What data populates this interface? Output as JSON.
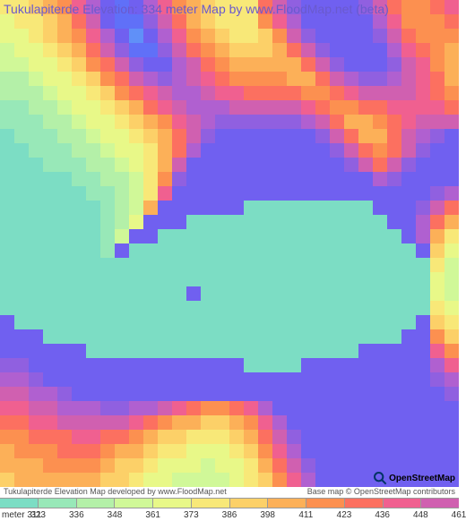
{
  "title": "Tukulapiterde Elevation: 334 meter Map by www.FloodMap.net (beta)",
  "footer_left": "Tukulapiterde Elevation Map developed by www.FloodMap.net",
  "footer_right": "Base map © OpenStreetMap contributors",
  "logo_text": "OpenStreetMap",
  "elevation_palette": [
    "#7CDDC4",
    "#7CDDC4",
    "#98E8B8",
    "#B4F0A8",
    "#D0F898",
    "#E8F888",
    "#F8E878",
    "#FCD068",
    "#FCB058",
    "#FC9050",
    "#FC7060",
    "#F06090",
    "#D060B0",
    "#B060D0",
    "#9060E0",
    "#7060F0",
    "#6070F8",
    "#6090F8",
    "#60B0F8"
  ],
  "legend": {
    "unit": "meter",
    "colors": [
      "#7CDDC4",
      "#98E8B8",
      "#B4F0A8",
      "#D0F898",
      "#E8F888",
      "#F8E878",
      "#FCD068",
      "#FCB058",
      "#FC9050",
      "#FC7060",
      "#F06090",
      "#D060B0"
    ],
    "labels": [
      "311",
      "323",
      "336",
      "348",
      "361",
      "373",
      "386",
      "398",
      "411",
      "423",
      "436",
      "448",
      "461"
    ]
  },
  "grid_cols": 32,
  "grid_rows": 34,
  "elevation_grid": [
    [
      6,
      6,
      7,
      8,
      9,
      11,
      13,
      15,
      16,
      15,
      13,
      11,
      9,
      8,
      7,
      6,
      6,
      6,
      10,
      12,
      14,
      15,
      15,
      15,
      15,
      14,
      12,
      10,
      9,
      9,
      10,
      11
    ],
    [
      5,
      6,
      6,
      7,
      8,
      10,
      12,
      15,
      16,
      16,
      14,
      12,
      10,
      8,
      7,
      6,
      6,
      6,
      9,
      11,
      13,
      15,
      15,
      15,
      15,
      15,
      13,
      11,
      9,
      9,
      9,
      10
    ],
    [
      5,
      5,
      6,
      7,
      8,
      9,
      11,
      13,
      15,
      17,
      15,
      13,
      11,
      9,
      8,
      7,
      6,
      6,
      7,
      9,
      12,
      14,
      15,
      15,
      15,
      15,
      14,
      12,
      10,
      9,
      9,
      9
    ],
    [
      4,
      5,
      5,
      6,
      7,
      8,
      10,
      12,
      14,
      16,
      16,
      14,
      12,
      10,
      9,
      8,
      7,
      7,
      7,
      8,
      10,
      12,
      14,
      15,
      15,
      15,
      15,
      13,
      11,
      10,
      9,
      8
    ],
    [
      4,
      4,
      5,
      5,
      6,
      7,
      9,
      10,
      12,
      14,
      15,
      15,
      13,
      12,
      10,
      9,
      8,
      8,
      8,
      8,
      8,
      10,
      12,
      14,
      15,
      15,
      15,
      14,
      12,
      11,
      9,
      8
    ],
    [
      3,
      3,
      4,
      5,
      5,
      6,
      7,
      9,
      10,
      12,
      13,
      14,
      13,
      12,
      11,
      10,
      9,
      9,
      9,
      9,
      8,
      8,
      10,
      12,
      13,
      14,
      14,
      13,
      12,
      11,
      10,
      8
    ],
    [
      3,
      3,
      3,
      4,
      5,
      5,
      6,
      7,
      9,
      10,
      11,
      12,
      13,
      13,
      12,
      11,
      11,
      10,
      10,
      10,
      10,
      9,
      9,
      10,
      11,
      12,
      12,
      12,
      12,
      11,
      10,
      9
    ],
    [
      2,
      2,
      3,
      3,
      4,
      5,
      5,
      6,
      7,
      8,
      10,
      11,
      12,
      13,
      13,
      13,
      12,
      12,
      12,
      12,
      12,
      11,
      10,
      9,
      9,
      10,
      10,
      11,
      11,
      11,
      11,
      10
    ],
    [
      2,
      2,
      2,
      3,
      3,
      4,
      5,
      5,
      6,
      7,
      8,
      9,
      11,
      12,
      13,
      14,
      14,
      14,
      14,
      14,
      14,
      13,
      12,
      10,
      8,
      8,
      9,
      10,
      11,
      12,
      12,
      12
    ],
    [
      1,
      2,
      2,
      2,
      3,
      3,
      4,
      5,
      5,
      6,
      7,
      8,
      10,
      12,
      14,
      15,
      15,
      15,
      15,
      15,
      15,
      15,
      14,
      12,
      10,
      8,
      8,
      10,
      12,
      13,
      14,
      15
    ],
    [
      1,
      1,
      2,
      2,
      2,
      3,
      3,
      4,
      5,
      5,
      6,
      8,
      10,
      13,
      15,
      15,
      15,
      15,
      15,
      15,
      15,
      15,
      15,
      14,
      12,
      10,
      9,
      10,
      12,
      14,
      15,
      15
    ],
    [
      1,
      1,
      1,
      2,
      2,
      2,
      3,
      3,
      4,
      5,
      6,
      8,
      12,
      15,
      15,
      15,
      15,
      15,
      15,
      15,
      15,
      15,
      15,
      15,
      14,
      12,
      10,
      12,
      14,
      15,
      15,
      15
    ],
    [
      0,
      0,
      1,
      1,
      1,
      2,
      2,
      3,
      3,
      4,
      6,
      9,
      14,
      15,
      15,
      15,
      15,
      15,
      15,
      15,
      15,
      15,
      15,
      15,
      15,
      15,
      13,
      14,
      15,
      15,
      15,
      15
    ],
    [
      0,
      0,
      0,
      1,
      1,
      1,
      2,
      2,
      3,
      4,
      6,
      11,
      15,
      15,
      15,
      15,
      15,
      15,
      15,
      15,
      15,
      15,
      15,
      15,
      15,
      15,
      15,
      15,
      15,
      15,
      14,
      13
    ],
    [
      0,
      0,
      0,
      0,
      0,
      1,
      1,
      2,
      3,
      4,
      8,
      15,
      15,
      15,
      15,
      15,
      15,
      0,
      0,
      0,
      0,
      0,
      0,
      0,
      0,
      0,
      15,
      15,
      15,
      14,
      12,
      10
    ],
    [
      0,
      0,
      0,
      0,
      0,
      0,
      1,
      2,
      3,
      5,
      15,
      15,
      15,
      0,
      0,
      0,
      0,
      0,
      0,
      0,
      0,
      0,
      0,
      0,
      0,
      0,
      0,
      15,
      15,
      13,
      10,
      8
    ],
    [
      0,
      0,
      0,
      0,
      0,
      0,
      1,
      2,
      4,
      15,
      15,
      0,
      0,
      0,
      0,
      0,
      0,
      0,
      0,
      0,
      0,
      0,
      0,
      0,
      0,
      0,
      0,
      0,
      15,
      13,
      8,
      6
    ],
    [
      0,
      0,
      0,
      0,
      0,
      0,
      1,
      2,
      15,
      0,
      0,
      0,
      0,
      0,
      0,
      0,
      0,
      0,
      0,
      0,
      0,
      0,
      0,
      0,
      0,
      0,
      0,
      0,
      0,
      15,
      7,
      5
    ],
    [
      0,
      0,
      0,
      0,
      0,
      0,
      0,
      0,
      0,
      0,
      0,
      0,
      0,
      0,
      0,
      0,
      0,
      0,
      0,
      0,
      0,
      0,
      0,
      0,
      0,
      0,
      0,
      0,
      0,
      0,
      6,
      4
    ],
    [
      0,
      0,
      0,
      0,
      0,
      0,
      0,
      0,
      0,
      0,
      0,
      0,
      0,
      0,
      0,
      0,
      0,
      0,
      0,
      0,
      0,
      0,
      0,
      0,
      0,
      0,
      0,
      0,
      0,
      0,
      5,
      4
    ],
    [
      0,
      0,
      0,
      0,
      0,
      0,
      0,
      0,
      0,
      0,
      0,
      0,
      0,
      15,
      0,
      0,
      0,
      0,
      0,
      0,
      0,
      0,
      0,
      0,
      0,
      0,
      0,
      0,
      0,
      0,
      5,
      4
    ],
    [
      0,
      0,
      0,
      0,
      0,
      0,
      0,
      0,
      0,
      0,
      0,
      0,
      0,
      0,
      0,
      0,
      0,
      0,
      0,
      0,
      0,
      0,
      0,
      0,
      0,
      0,
      0,
      0,
      0,
      0,
      6,
      5
    ],
    [
      15,
      0,
      0,
      0,
      0,
      0,
      0,
      0,
      0,
      0,
      0,
      0,
      0,
      0,
      0,
      0,
      0,
      0,
      0,
      0,
      0,
      0,
      0,
      0,
      0,
      0,
      0,
      0,
      0,
      15,
      7,
      6
    ],
    [
      15,
      15,
      15,
      0,
      0,
      0,
      0,
      0,
      0,
      0,
      0,
      0,
      0,
      0,
      0,
      0,
      0,
      0,
      0,
      0,
      0,
      0,
      0,
      0,
      0,
      0,
      0,
      0,
      15,
      15,
      9,
      7
    ],
    [
      15,
      15,
      15,
      15,
      15,
      15,
      0,
      0,
      0,
      0,
      0,
      0,
      0,
      0,
      0,
      0,
      0,
      0,
      0,
      0,
      0,
      0,
      0,
      0,
      0,
      15,
      15,
      15,
      15,
      15,
      11,
      9
    ],
    [
      14,
      14,
      15,
      15,
      15,
      15,
      15,
      15,
      15,
      15,
      15,
      15,
      15,
      15,
      15,
      15,
      15,
      0,
      0,
      0,
      0,
      15,
      15,
      15,
      15,
      15,
      15,
      15,
      15,
      15,
      13,
      11
    ],
    [
      13,
      13,
      14,
      15,
      15,
      15,
      15,
      15,
      15,
      15,
      15,
      15,
      15,
      15,
      15,
      15,
      15,
      15,
      15,
      15,
      15,
      15,
      15,
      15,
      15,
      15,
      15,
      15,
      15,
      15,
      14,
      13
    ],
    [
      12,
      12,
      13,
      13,
      14,
      15,
      15,
      15,
      15,
      15,
      15,
      15,
      15,
      15,
      15,
      15,
      15,
      15,
      15,
      15,
      15,
      15,
      15,
      15,
      15,
      15,
      15,
      15,
      15,
      15,
      15,
      14
    ],
    [
      11,
      11,
      12,
      12,
      13,
      13,
      13,
      14,
      14,
      13,
      13,
      12,
      11,
      10,
      9,
      9,
      10,
      11,
      13,
      15,
      15,
      15,
      15,
      15,
      15,
      15,
      15,
      15,
      15,
      15,
      15,
      15
    ],
    [
      10,
      10,
      11,
      11,
      12,
      12,
      12,
      12,
      12,
      11,
      10,
      9,
      8,
      8,
      7,
      7,
      8,
      9,
      11,
      13,
      15,
      15,
      15,
      15,
      15,
      15,
      15,
      15,
      15,
      15,
      15,
      15
    ],
    [
      9,
      9,
      10,
      10,
      10,
      11,
      11,
      10,
      10,
      9,
      8,
      7,
      7,
      6,
      6,
      6,
      7,
      8,
      10,
      12,
      14,
      15,
      15,
      15,
      15,
      15,
      15,
      15,
      15,
      15,
      15,
      15
    ],
    [
      8,
      9,
      9,
      9,
      10,
      10,
      10,
      9,
      8,
      8,
      7,
      6,
      6,
      5,
      5,
      5,
      6,
      7,
      9,
      11,
      13,
      15,
      15,
      15,
      15,
      15,
      15,
      15,
      15,
      15,
      15,
      15
    ],
    [
      8,
      8,
      8,
      9,
      9,
      9,
      9,
      8,
      7,
      7,
      6,
      5,
      5,
      5,
      4,
      5,
      5,
      6,
      8,
      10,
      12,
      14,
      15,
      15,
      15,
      15,
      15,
      15,
      15,
      15,
      15,
      15
    ],
    [
      7,
      8,
      8,
      8,
      8,
      8,
      8,
      7,
      7,
      6,
      5,
      5,
      4,
      4,
      4,
      4,
      5,
      6,
      7,
      9,
      11,
      13,
      15,
      15,
      15,
      15,
      15,
      15,
      15,
      15,
      15,
      15
    ]
  ]
}
